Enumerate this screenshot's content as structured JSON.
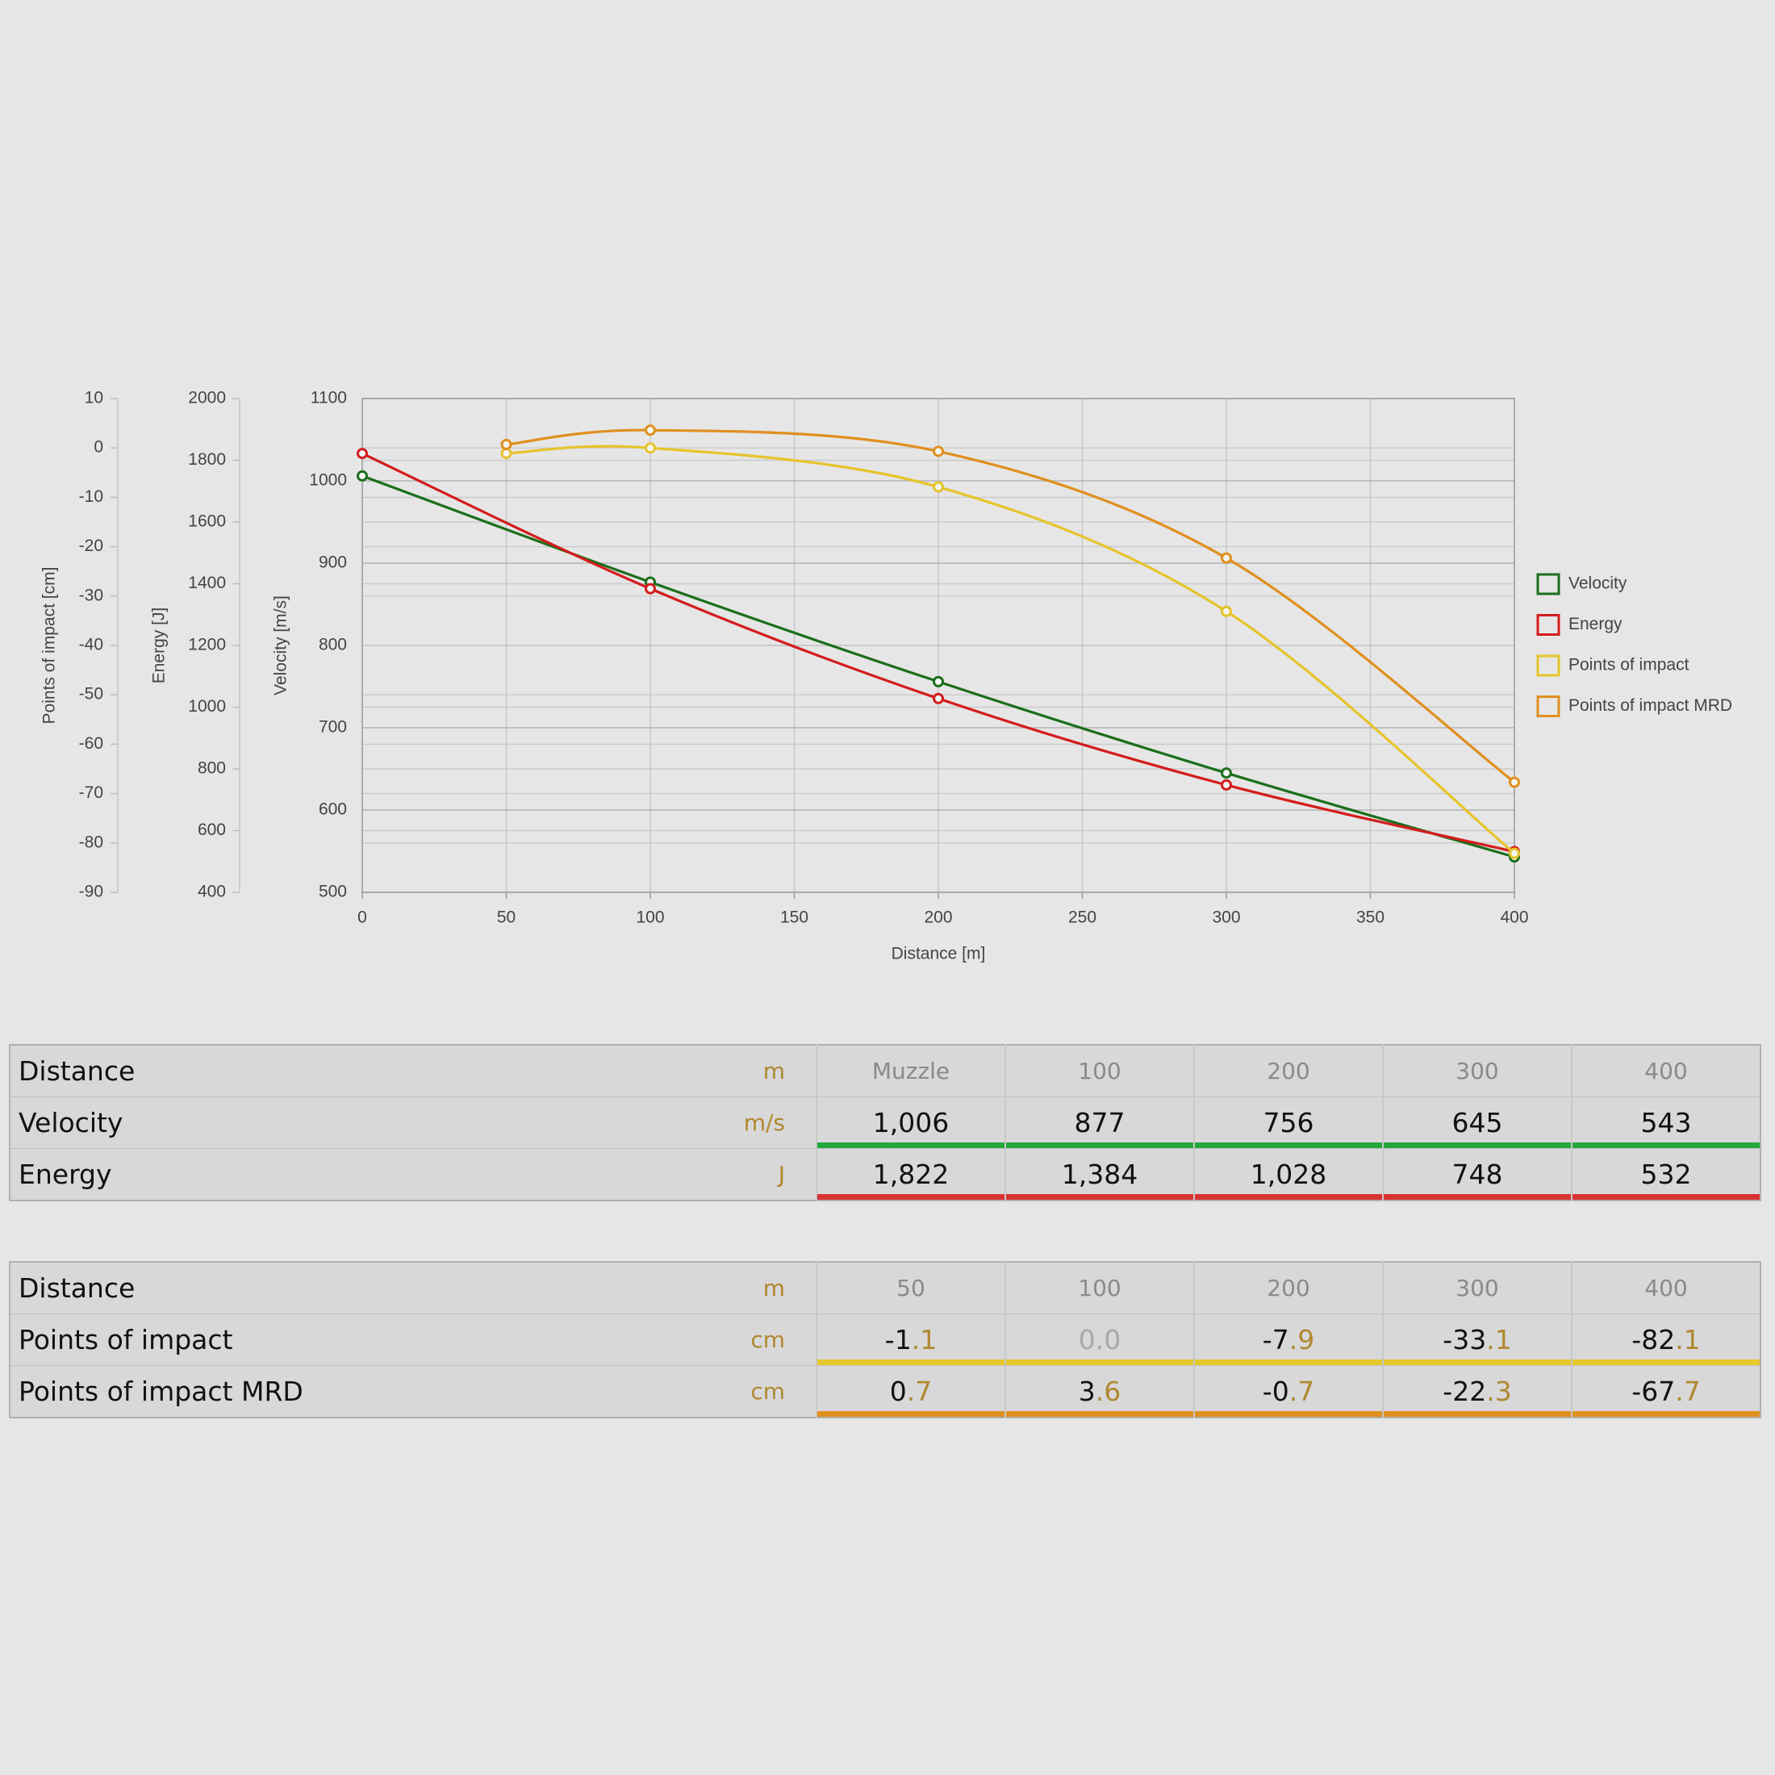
{
  "chart_data": {
    "type": "line",
    "xlabel": "Distance [m]",
    "xlim": [
      0,
      400
    ],
    "xticks": [
      0,
      50,
      100,
      150,
      200,
      250,
      300,
      350,
      400
    ],
    "ylabel": "Velocity [m/s]",
    "ylim": [
      500,
      1100
    ],
    "yticks": [
      500,
      600,
      700,
      800,
      900,
      1000,
      1100
    ],
    "y2label": "Energy [J]",
    "y2lim": [
      400,
      2000
    ],
    "y2ticks": [
      400,
      600,
      800,
      1000,
      1200,
      1400,
      1600,
      1800,
      2000
    ],
    "y3label": "Points of impact [cm]",
    "y3lim": [
      -90,
      10
    ],
    "y3ticks": [
      -90,
      -80,
      -70,
      -60,
      -50,
      -40,
      -30,
      -20,
      -10,
      0,
      10
    ],
    "grid": true,
    "legend": "right",
    "series": [
      {
        "name": "Velocity",
        "color": "#1b6e1b",
        "x": [
          0,
          100,
          200,
          300,
          400
        ],
        "values": [
          1006,
          877,
          756,
          645,
          543
        ]
      },
      {
        "name": "Energy",
        "color": "#d41c1c",
        "axis": "y2",
        "x": [
          0,
          100,
          200,
          300,
          400
        ],
        "values": [
          1822,
          1384,
          1028,
          748,
          532
        ]
      },
      {
        "name": "Points of impact",
        "color": "#e6c42a",
        "axis": "y3",
        "x": [
          50,
          100,
          200,
          300,
          400
        ],
        "values": [
          -1.1,
          0.0,
          -7.9,
          -33.1,
          -82.1
        ]
      },
      {
        "name": "Points of impact MRD",
        "color": "#e08f1e",
        "axis": "y3",
        "x": [
          50,
          100,
          200,
          300,
          400
        ],
        "values": [
          0.7,
          3.6,
          -0.7,
          -22.3,
          -67.7
        ]
      }
    ]
  },
  "tables": [
    {
      "header": {
        "label": "Distance",
        "unit": "m",
        "cells": [
          "Muzzle",
          "100",
          "200",
          "300",
          "400"
        ]
      },
      "rows": [
        {
          "label": "Velocity",
          "unit": "m/s",
          "color": "#22a83a",
          "cells": [
            "1,006",
            "877",
            "756",
            "645",
            "543"
          ]
        },
        {
          "label": "Energy",
          "unit": "J",
          "color": "#d83232",
          "cells": [
            "1,822",
            "1,384",
            "1,028",
            "748",
            "532"
          ]
        }
      ]
    },
    {
      "header": {
        "label": "Distance",
        "unit": "m",
        "cells": [
          "50",
          "100",
          "200",
          "300",
          "400"
        ]
      },
      "rows": [
        {
          "label": "Points of impact",
          "unit": "cm",
          "color": "#e6c82a",
          "cells": [
            "-1.1",
            "0.0",
            "-7.9",
            "-33.1",
            "-82.1"
          ]
        },
        {
          "label": "Points of impact MRD",
          "unit": "cm",
          "color": "#e0901e",
          "cells": [
            "0.7",
            "3.6",
            "-0.7",
            "-22.3",
            "-67.7"
          ]
        }
      ]
    }
  ]
}
